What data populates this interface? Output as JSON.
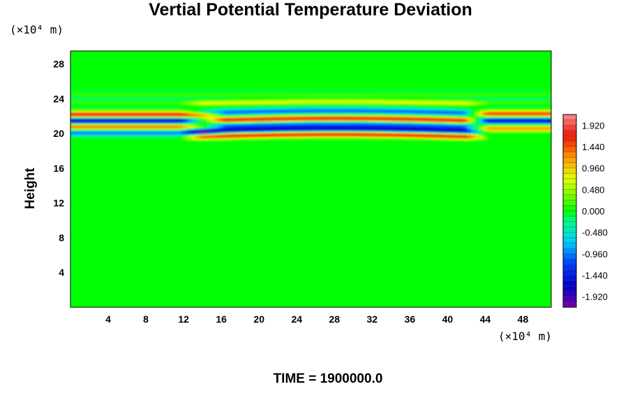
{
  "chart_data": {
    "type": "heatmap",
    "title": "Vertial Potential Temperature Deviation",
    "ylabel": "Height",
    "xlabel": "",
    "x_unit": "(×10⁴ m)",
    "y_unit": "(×10⁴ m)",
    "xlim": [
      0,
      51
    ],
    "ylim": [
      0,
      29.5
    ],
    "x_ticks": [
      4,
      8,
      12,
      16,
      20,
      24,
      28,
      32,
      36,
      40,
      44,
      48
    ],
    "y_ticks": [
      4,
      8,
      12,
      16,
      20,
      24,
      28
    ],
    "colorbar": {
      "range": [
        -2.16,
        2.16
      ],
      "ticks": [
        "1.920",
        "1.440",
        "0.960",
        "0.480",
        "0.000",
        "-0.480",
        "-0.960",
        "-1.440",
        "-1.920"
      ],
      "tick_values": [
        1.92,
        1.44,
        0.96,
        0.48,
        0.0,
        -0.48,
        -0.96,
        -1.44,
        -1.92
      ]
    },
    "bands": [
      {
        "y": 22.2,
        "amp": 1.9,
        "region": "left",
        "x_range": [
          0,
          14
        ]
      },
      {
        "y": 21.5,
        "amp": -1.9,
        "region": "left",
        "x_range": [
          0,
          14
        ]
      },
      {
        "y": 20.8,
        "amp": 1.4,
        "region": "left",
        "x_range": [
          0,
          14
        ]
      },
      {
        "y": 20.1,
        "amp": -1.0,
        "region": "left",
        "x_range": [
          0,
          14
        ]
      },
      {
        "y": 23.5,
        "amp": 0.6,
        "region": "middle",
        "x_range": [
          14,
          42
        ]
      },
      {
        "y": 22.4,
        "amp": -1.1,
        "region": "middle",
        "x_range": [
          14,
          42
        ]
      },
      {
        "y": 21.5,
        "amp": 1.9,
        "region": "middle",
        "x_range": [
          14,
          42
        ]
      },
      {
        "y": 20.9,
        "amp": -1.0,
        "region": "middle",
        "x_range": [
          14,
          42
        ]
      },
      {
        "y": 20.3,
        "amp": -1.8,
        "region": "middle",
        "x_range": [
          14,
          42
        ]
      },
      {
        "y": 19.7,
        "amp": 1.8,
        "region": "middle",
        "x_range": [
          14,
          42
        ]
      },
      {
        "y": 22.3,
        "amp": 1.6,
        "region": "right",
        "x_range": [
          44,
          51
        ]
      },
      {
        "y": 21.5,
        "amp": -1.7,
        "region": "right",
        "x_range": [
          44,
          51
        ]
      },
      {
        "y": 20.6,
        "amp": 1.2,
        "region": "right",
        "x_range": [
          44,
          51
        ]
      }
    ]
  },
  "footer": {
    "time_label": "TIME = 1900000.0"
  }
}
